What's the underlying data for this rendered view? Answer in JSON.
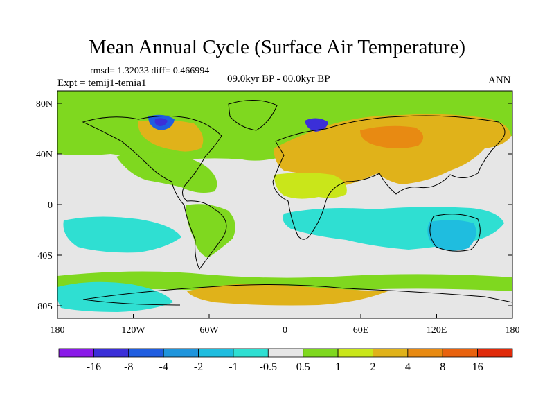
{
  "title": "Mean Annual Cycle (Surface Air Temperature)",
  "stats_line": "rmsd= 1.32033 diff= 0.466994",
  "experiment_label": "Expt = temij1-temia1",
  "period_label": "09.0kyr BP - 00.0kyr BP",
  "season_label": "ANN",
  "lat_ticks": [
    "80N",
    "40N",
    "0",
    "40S",
    "80S"
  ],
  "lon_ticks": [
    "180",
    "120W",
    "60W",
    "0",
    "60E",
    "120E",
    "180"
  ],
  "colorbar": {
    "labels": [
      "-16",
      "-8",
      "-4",
      "-2",
      "-1",
      "-0.5",
      "0.5",
      "1",
      "2",
      "4",
      "8",
      "16"
    ],
    "colors": [
      "#8a1ae8",
      "#3b2fd8",
      "#1f5de0",
      "#1f95dc",
      "#1fbddf",
      "#2fdfd2",
      "#e6e6e6",
      "#7fd81f",
      "#c9e61a",
      "#e0b21a",
      "#e88a12",
      "#e8620e",
      "#e02a0a"
    ]
  },
  "map_colors": {
    "ocean_neutral": "#e6e6e6",
    "cool_light": "#2fdfd2",
    "cool_mid": "#1fbddf",
    "cold": "#1f5de0",
    "coldest": "#3b2fd8",
    "warm_green": "#7fd81f",
    "warm_yellow": "#c9e61a",
    "warm_orange": "#e0b21a",
    "hot": "#e88a12",
    "coast": "#000000"
  }
}
